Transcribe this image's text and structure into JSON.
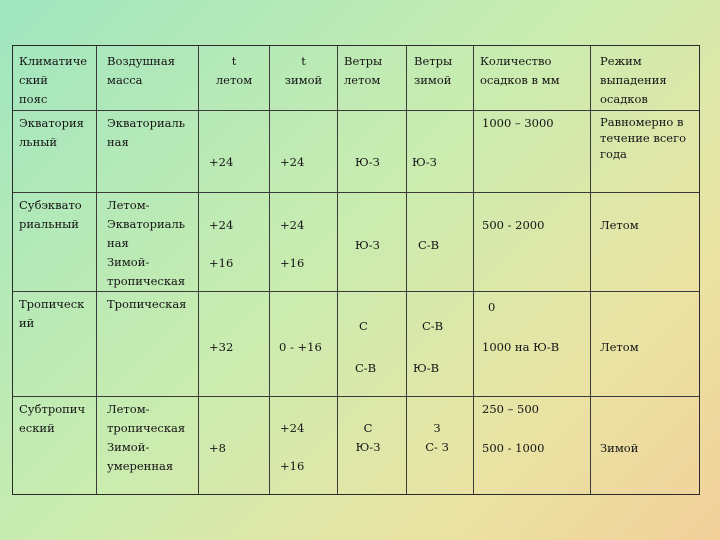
{
  "headers": {
    "zone": "Климатиче\nский\nпояс",
    "air_mass": "Воздушная\nмасса",
    "t_summer": "t\nлетом",
    "t_winter": "t\nзимой",
    "winds_summer": "Ветры\nлетом",
    "winds_winter": "Ветры\nзимой",
    "precip_amount": "Количество\nосадков в мм",
    "precip_mode": "Режим\nвыпадения\nосадков"
  },
  "rows": [
    {
      "zone": "Экватория\nльный",
      "air_mass": "Экваториаль\nная",
      "t_summer": "+24",
      "t_winter": "+24",
      "winds_summer": "Ю-З",
      "winds_winter": "Ю-З",
      "precip_amount": "1000 – 3000",
      "precip_mode": "Равномерно в\nтечение всего\nгода"
    },
    {
      "zone": "Субэквато\nриальный",
      "air_mass": "Летом-\nЭкваториаль\nная\nЗимой-\nтропическая",
      "t_summer": "+24\n\n+16",
      "t_winter": "+24\n\n+16",
      "winds_summer": "Ю-З",
      "winds_winter": "С-В",
      "precip_amount": "500 -  2000",
      "precip_mode": "Летом"
    },
    {
      "zone": "Тропическ\nий",
      "air_mass": "Тропическая",
      "t_summer": "+32",
      "t_winter": "0 - +16",
      "winds_summer_1": "С",
      "winds_summer_2": "С-В",
      "winds_winter_1": "С-В",
      "winds_winter_2": "Ю-В",
      "precip_amount_1": "0",
      "precip_amount_2": "1000 на Ю-В",
      "precip_mode": "Летом"
    },
    {
      "zone": "Субтропич\nеский",
      "air_mass": "Летом-\nтропическая\nЗимой-\nумеренная",
      "t_summer": "+8",
      "t_winter": "+24\n\n+16",
      "winds_summer": "С\nЮ-З",
      "winds_winter": "З\nС- З",
      "precip_amount_1": "250 – 500",
      "precip_amount_2": "500 - 1000",
      "precip_mode": "Зимой"
    }
  ]
}
